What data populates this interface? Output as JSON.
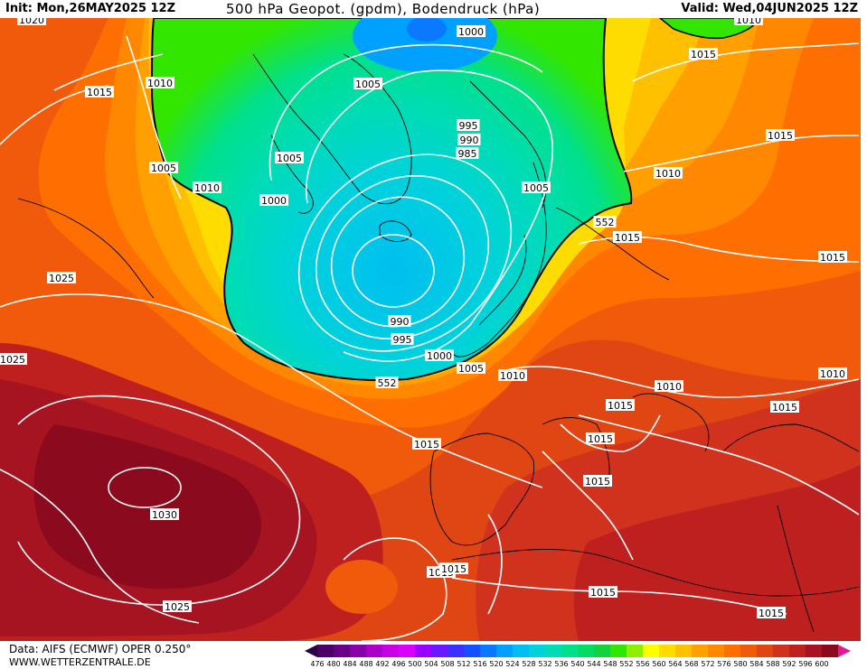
{
  "header": {
    "init": "Init: Mon,26MAY2025 12Z",
    "title": "500 hPa Geopot. (gpdm), Bodendruck (hPa)",
    "valid": "Valid: Wed,04JUN2025 12Z"
  },
  "footer": {
    "source": "Data: AIFS (ECMWF) OPER 0.250°",
    "website": "WWW.WETTERZENTRALE.DE"
  },
  "colorbar": {
    "ticks": [
      "476",
      "480",
      "484",
      "488",
      "492",
      "496",
      "500",
      "504",
      "508",
      "512",
      "516",
      "520",
      "524",
      "528",
      "532",
      "536",
      "540",
      "544",
      "548",
      "552",
      "556",
      "560",
      "564",
      "568",
      "572",
      "576",
      "580",
      "584",
      "588",
      "592",
      "596",
      "600"
    ],
    "colors": [
      "#4b0068",
      "#6a0088",
      "#8a00a8",
      "#aa00c8",
      "#c800e6",
      "#d800ff",
      "#9a00ff",
      "#6a18ff",
      "#3c30ff",
      "#1450ff",
      "#0a78ff",
      "#00a0ff",
      "#00bef0",
      "#00d2dc",
      "#00dcb4",
      "#00e08c",
      "#00dc64",
      "#14d23c",
      "#32e600",
      "#8cf000",
      "#ffff00",
      "#ffdc00",
      "#ffc000",
      "#ffa000",
      "#ff8800",
      "#ff6e00",
      "#f05a0a",
      "#e04614",
      "#d0321e",
      "#be2020",
      "#a51420",
      "#8c0a1e"
    ]
  },
  "isobar_labels": [
    {
      "text": "1020"
    },
    {
      "text": "1015"
    },
    {
      "text": "1010"
    },
    {
      "text": "1005"
    },
    {
      "text": "1010"
    },
    {
      "text": "1025"
    },
    {
      "text": "1025"
    },
    {
      "text": "1030"
    },
    {
      "text": "1025"
    },
    {
      "text": "1005"
    },
    {
      "text": "1005"
    },
    {
      "text": "1000"
    },
    {
      "text": "1000"
    },
    {
      "text": "995"
    },
    {
      "text": "990"
    },
    {
      "text": "985"
    },
    {
      "text": "990"
    },
    {
      "text": "995"
    },
    {
      "text": "1000"
    },
    {
      "text": "1005"
    },
    {
      "text": "1010"
    },
    {
      "text": "1015"
    },
    {
      "text": "1005"
    },
    {
      "text": "552"
    },
    {
      "text": "552"
    },
    {
      "text": "1015"
    },
    {
      "text": "1015"
    },
    {
      "text": "1010"
    },
    {
      "text": "1010"
    },
    {
      "text": "1015"
    },
    {
      "text": "1010"
    },
    {
      "text": "1015"
    },
    {
      "text": "1015"
    },
    {
      "text": "1015"
    },
    {
      "text": "1015"
    },
    {
      "text": "1015"
    },
    {
      "text": "1015"
    },
    {
      "text": "1015"
    },
    {
      "text": "1015"
    },
    {
      "text": "1015"
    },
    {
      "text": "1010"
    }
  ]
}
